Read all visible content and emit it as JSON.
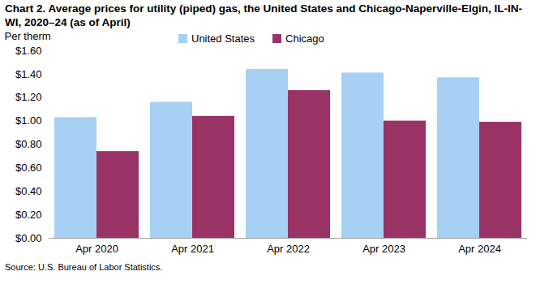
{
  "chart_data": {
    "type": "bar",
    "title": "Chart 2. Average prices for utility (piped) gas, the United States and Chicago-Naperville-Elgin, IL-IN-WI, 2020–24 (as of April)",
    "y_label": "Per therm",
    "source": "Source: U.S. Bureau of Labor Statistics.",
    "categories": [
      "Apr 2020",
      "Apr 2021",
      "Apr 2022",
      "Apr 2023",
      "Apr 2024"
    ],
    "series": [
      {
        "name": "United States",
        "color": "#a6d1f5",
        "values": [
          1.03,
          1.16,
          1.44,
          1.41,
          1.37
        ]
      },
      {
        "name": "Chicago",
        "color": "#993366",
        "values": [
          0.74,
          1.04,
          1.26,
          1.0,
          0.99
        ]
      }
    ],
    "ylim": [
      0,
      1.6
    ],
    "yticks": [
      {
        "value": 0,
        "label": "$0.00"
      },
      {
        "value": 0.2,
        "label": "$0.20"
      },
      {
        "value": 0.4,
        "label": "$0.40"
      },
      {
        "value": 0.6,
        "label": "$0.60"
      },
      {
        "value": 0.8,
        "label": "$0.80"
      },
      {
        "value": 1.0,
        "label": "$1.00"
      },
      {
        "value": 1.2,
        "label": "$1.20"
      },
      {
        "value": 1.4,
        "label": "$1.40"
      },
      {
        "value": 1.6,
        "label": "$1.60"
      }
    ],
    "grid": false,
    "legend": "top"
  }
}
